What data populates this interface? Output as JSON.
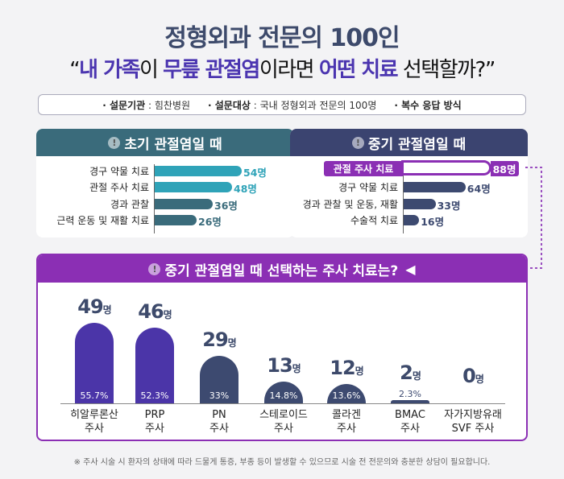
{
  "header": {
    "title": "정형외과 전문의 100인",
    "subtitle_parts": [
      {
        "t": "“",
        "s": "n"
      },
      {
        "t": "내 가족",
        "s": "hl"
      },
      {
        "t": "이 ",
        "s": "n"
      },
      {
        "t": "무릎 관절염",
        "s": "hl"
      },
      {
        "t": "이라면 ",
        "s": "n"
      },
      {
        "t": "어떤 치료",
        "s": "hl"
      },
      {
        "t": " 선택할까?”",
        "s": "n"
      }
    ]
  },
  "info": [
    {
      "k": "· 설문기관",
      "v": " : 힘찬병원"
    },
    {
      "k": "· 설문대상",
      "v": " : 국내 정형외과 전문의 100명"
    },
    {
      "k": "· 복수 응답 방식",
      "v": ""
    }
  ],
  "colors": {
    "teal": "#3a6b7b",
    "teal_bar": "#2fa3b8",
    "slate": "#3d4a70",
    "navy_header": "#3b4470",
    "purple": "#8b2fb4",
    "indigo": "#4b35a8"
  },
  "chart_data": [
    {
      "type": "bar",
      "orientation": "horizontal",
      "title": "초기 관절염일 때",
      "unit": "명",
      "categories": [
        "경구 약물 치료",
        "관절 주사 치료",
        "경과 관찰",
        "근력 운동 및 재활 치료"
      ],
      "values": [
        54,
        48,
        36,
        26
      ],
      "labels": [
        "54명",
        "48명",
        "36명",
        "26명"
      ]
    },
    {
      "type": "bar",
      "orientation": "horizontal",
      "title": "중기 관절염일 때",
      "unit": "명",
      "categories": [
        "관절 주사 치료",
        "경구 약물 치료",
        "경과 관찰 및 운동, 재활",
        "수술적 치료"
      ],
      "values": [
        88,
        64,
        33,
        16
      ],
      "labels": [
        "88명",
        "64명",
        "33명",
        "16명"
      ],
      "highlight": "관절 주사 치료"
    },
    {
      "type": "bar",
      "orientation": "vertical",
      "title": "중기 관절염일 때 선택하는 주사 치료는?",
      "unit": "명",
      "categories": [
        [
          "히알루론산",
          "주사"
        ],
        [
          "PRP",
          "주사"
        ],
        [
          "PN",
          "주사"
        ],
        [
          "스테로이드",
          "주사"
        ],
        [
          "콜라겐",
          "주사"
        ],
        [
          "BMAC",
          "주사"
        ],
        [
          "자가지방유래",
          "SVF 주사"
        ]
      ],
      "values": [
        49,
        46,
        29,
        13,
        12,
        2,
        0
      ],
      "percents": [
        "55.7%",
        "52.3%",
        "33%",
        "14.8%",
        "13.6%",
        "2.3%",
        ""
      ]
    }
  ],
  "exclaim": "!",
  "unit": "명",
  "footnote": "※ 주사 시술 시 환자의 상태에 따라 드물게 통증, 부종 등이 발생할 수 있으므로 시술 전 전문의와 충분한 상담이 필요합니다."
}
